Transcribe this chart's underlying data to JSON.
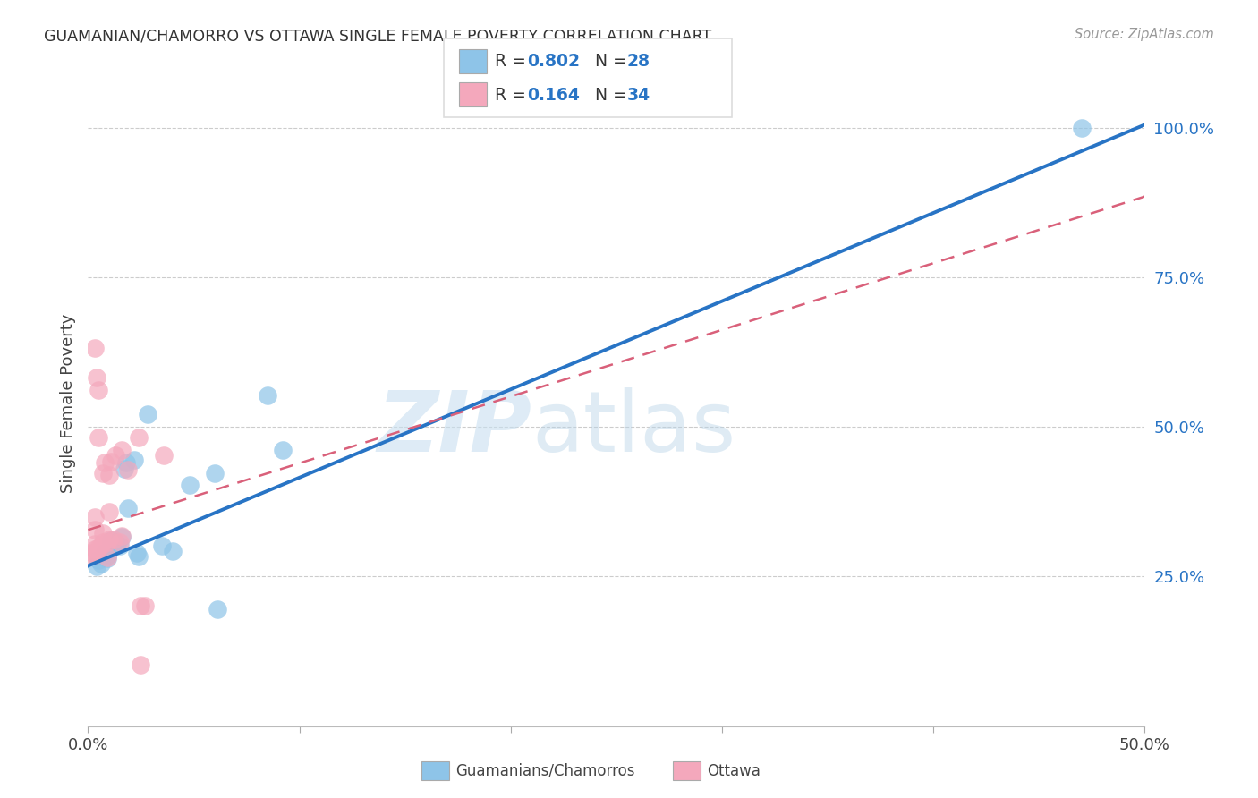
{
  "title": "GUAMANIAN/CHAMORRO VS OTTAWA SINGLE FEMALE POVERTY CORRELATION CHART",
  "source": "Source: ZipAtlas.com",
  "ylabel": "Single Female Poverty",
  "watermark_zip": "ZIP",
  "watermark_atlas": "atlas",
  "xmin": 0.0,
  "xmax": 0.5,
  "ymin": 0.0,
  "ymax": 1.08,
  "xtick_pos": [
    0.0,
    0.1,
    0.2,
    0.3,
    0.4,
    0.5
  ],
  "xtick_labels": [
    "0.0%",
    "",
    "",
    "",
    "",
    "50.0%"
  ],
  "ytick_positions_right": [
    0.25,
    0.5,
    0.75,
    1.0
  ],
  "ytick_labels_right": [
    "25.0%",
    "50.0%",
    "75.0%",
    "100.0%"
  ],
  "blue_color": "#8ec4e8",
  "pink_color": "#f4a8bc",
  "blue_line_color": "#2874c5",
  "pink_line_color": "#d9607a",
  "blue_scatter": [
    [
      0.004,
      0.267
    ],
    [
      0.005,
      0.278
    ],
    [
      0.006,
      0.272
    ],
    [
      0.008,
      0.29
    ],
    [
      0.009,
      0.285
    ],
    [
      0.009,
      0.28
    ],
    [
      0.01,
      0.295
    ],
    [
      0.011,
      0.31
    ],
    [
      0.012,
      0.3
    ],
    [
      0.013,
      0.308
    ],
    [
      0.014,
      0.305
    ],
    [
      0.015,
      0.302
    ],
    [
      0.016,
      0.316
    ],
    [
      0.017,
      0.43
    ],
    [
      0.018,
      0.44
    ],
    [
      0.019,
      0.365
    ],
    [
      0.022,
      0.445
    ],
    [
      0.023,
      0.29
    ],
    [
      0.024,
      0.283
    ],
    [
      0.028,
      0.522
    ],
    [
      0.035,
      0.302
    ],
    [
      0.04,
      0.292
    ],
    [
      0.048,
      0.403
    ],
    [
      0.06,
      0.423
    ],
    [
      0.061,
      0.195
    ],
    [
      0.085,
      0.553
    ],
    [
      0.092,
      0.462
    ],
    [
      0.47,
      1.0
    ]
  ],
  "pink_scatter": [
    [
      0.002,
      0.29
    ],
    [
      0.002,
      0.285
    ],
    [
      0.003,
      0.295
    ],
    [
      0.003,
      0.305
    ],
    [
      0.003,
      0.328
    ],
    [
      0.003,
      0.35
    ],
    [
      0.004,
      0.288
    ],
    [
      0.005,
      0.298
    ],
    [
      0.006,
      0.302
    ],
    [
      0.007,
      0.308
    ],
    [
      0.007,
      0.323
    ],
    [
      0.007,
      0.422
    ],
    [
      0.008,
      0.44
    ],
    [
      0.009,
      0.308
    ],
    [
      0.01,
      0.312
    ],
    [
      0.01,
      0.358
    ],
    [
      0.01,
      0.42
    ],
    [
      0.011,
      0.442
    ],
    [
      0.012,
      0.312
    ],
    [
      0.013,
      0.452
    ],
    [
      0.015,
      0.308
    ],
    [
      0.016,
      0.462
    ],
    [
      0.016,
      0.318
    ],
    [
      0.019,
      0.428
    ],
    [
      0.024,
      0.482
    ],
    [
      0.025,
      0.202
    ],
    [
      0.027,
      0.202
    ],
    [
      0.025,
      0.102
    ],
    [
      0.036,
      0.452
    ],
    [
      0.003,
      0.632
    ],
    [
      0.004,
      0.582
    ],
    [
      0.005,
      0.562
    ],
    [
      0.005,
      0.482
    ],
    [
      0.009,
      0.282
    ]
  ],
  "blue_line_x": [
    0.0,
    0.5
  ],
  "blue_line_y": [
    0.268,
    1.005
  ],
  "pink_line_x": [
    0.0,
    0.5
  ],
  "pink_line_y": [
    0.328,
    0.885
  ],
  "background_color": "#ffffff",
  "grid_color": "#cccccc",
  "legend_R1": "0.802",
  "legend_N1": "28",
  "legend_R2": "0.164",
  "legend_N2": "34"
}
